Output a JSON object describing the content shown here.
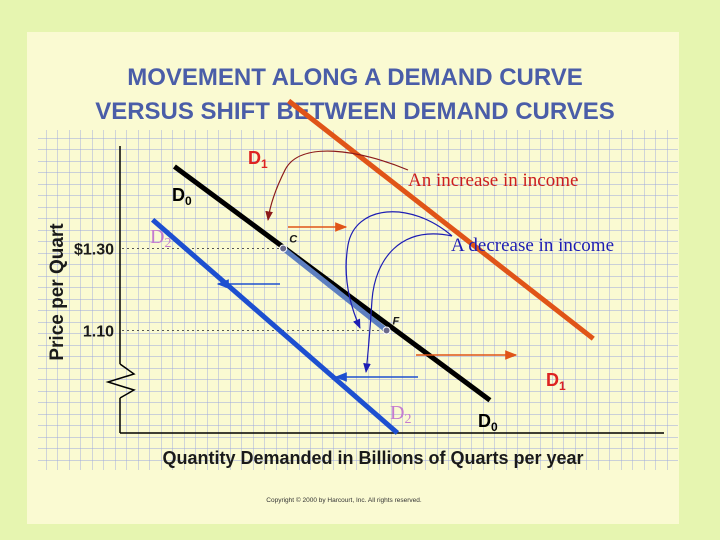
{
  "slide": {
    "title_line1": "MOVEMENT ALONG A DEMAND CURVE",
    "title_line2": "VERSUS SHIFT BETWEEN DEMAND CURVES",
    "copyright": "Copyright © 2000 by Harcourt, Inc.  All rights reserved.",
    "annotation_increase": "An increase in income",
    "annotation_decrease": "A decrease in income"
  },
  "colors": {
    "background": "#e6f5b0",
    "panel": "#fafad2",
    "grid": "#9aa6df",
    "title": "#4a5da8",
    "d0": "#000000",
    "d1": "#e05418",
    "d2": "#1d4fd0",
    "movement": "#5d7fc0",
    "arrow_right": "#e05418",
    "arrow_left": "#1d4fd0",
    "annotation_increase": "#cc1f1f",
    "annotation_decrease": "#1d1db4",
    "d2_label": "#c47bd0"
  },
  "chart_data": {
    "type": "line",
    "xlabel": "Quantity Demanded in Billions of Quarts per year",
    "ylabel": "Price per Quart",
    "y_ticks": [
      {
        "value": 1.3,
        "label": "$1.30"
      },
      {
        "value": 1.1,
        "label": "1.10"
      }
    ],
    "ylim": [
      0.85,
      1.55
    ],
    "xlim": [
      0,
      10
    ],
    "grid": true,
    "axis_break": true,
    "series": [
      {
        "name": "D0",
        "label": "D",
        "sub": "0",
        "color": "#000000",
        "points": [
          [
            1.0,
            1.5
          ],
          [
            6.8,
            0.93
          ]
        ]
      },
      {
        "name": "D1",
        "label": "D",
        "sub": "1",
        "color": "#e05418",
        "points": [
          [
            3.1,
            1.66
          ],
          [
            8.7,
            1.08
          ]
        ]
      },
      {
        "name": "D2",
        "label": "D",
        "sub": "2",
        "color": "#1d4fd0",
        "points": [
          [
            0.6,
            1.37
          ],
          [
            5.1,
            0.85
          ]
        ]
      }
    ],
    "points": [
      {
        "label": "C",
        "x": 3.0,
        "y": 1.3
      },
      {
        "label": "F",
        "x": 4.9,
        "y": 1.1
      }
    ]
  }
}
